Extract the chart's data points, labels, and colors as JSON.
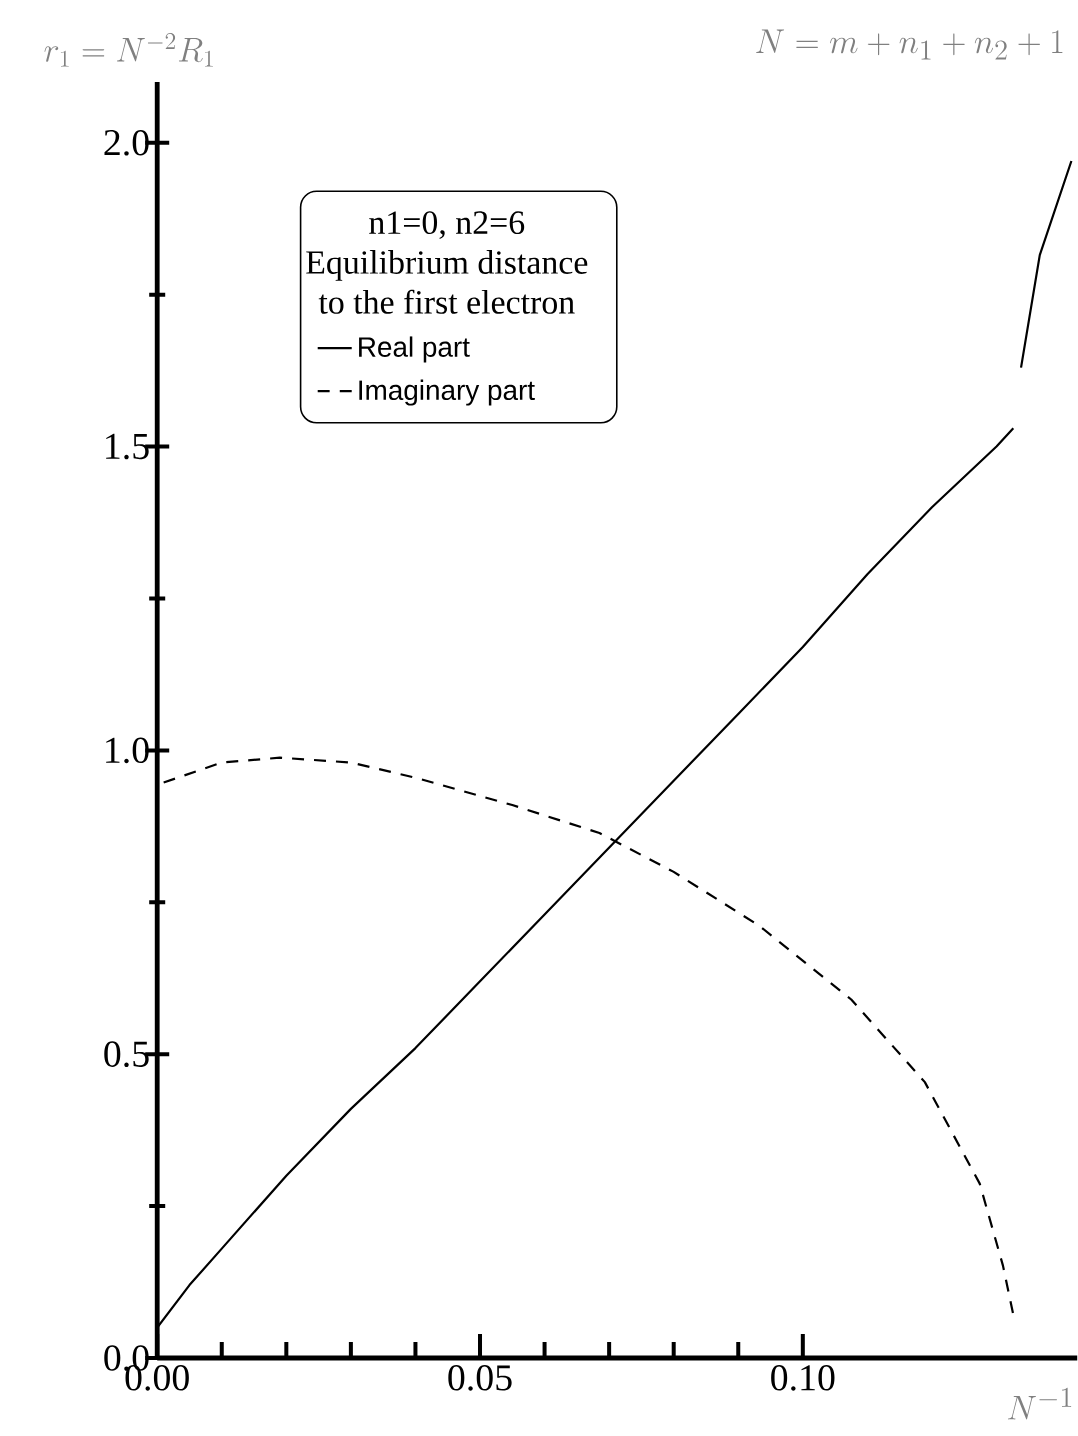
{
  "chart_data": {
    "type": "line",
    "title": "N = m + n_1 + n_2 + 1",
    "xlabel": "N^{-1}",
    "ylabel": "r_1 = N^{-2} R_1",
    "legend_title": "n1=0, n2=6 Equilibrium distance to the first electron",
    "xlim": [
      0,
      0.1425
    ],
    "ylim": [
      0,
      2.1
    ],
    "xticks": [
      {
        "value": 0,
        "label": "0.00"
      },
      {
        "value": 0.05,
        "label": "0.05"
      },
      {
        "value": 0.1,
        "label": "0.10"
      }
    ],
    "yticks": [
      {
        "value": 0,
        "label": "0.0"
      },
      {
        "value": 0.5,
        "label": "0.5"
      },
      {
        "value": 1,
        "label": "1.0"
      },
      {
        "value": 1.5,
        "label": "1.5"
      },
      {
        "value": 2,
        "label": "2.0"
      }
    ],
    "grid": false,
    "legend": "top",
    "marker": "none",
    "series": [
      {
        "name": "Real part",
        "color": "#000000",
        "line_style": "solid",
        "x": [
          0,
          0.005,
          0.01,
          0.02,
          0.03,
          0.04,
          0.05,
          0.06,
          0.07,
          0.08,
          0.09,
          0.1,
          0.11,
          0.12,
          0.13,
          0.1326,
          0.1332,
          0.1338,
          0.1367,
          0.1416
        ],
        "values": [
          0.05,
          0.12,
          0.18,
          0.3,
          0.41,
          0.51,
          0.62,
          0.73,
          0.84,
          0.95,
          1.06,
          1.17,
          1.29,
          1.4,
          1.5,
          1.53,
          null,
          1.63,
          1.815,
          1.97
        ]
      },
      {
        "name": "Imaginary part",
        "color": "#000000",
        "line_style": "dashed",
        "x": [
          0.001,
          0.01,
          0.019,
          0.03,
          0.04,
          0.055,
          0.0685,
          0.08,
          0.0933,
          0.1075,
          0.1189,
          0.1274,
          0.131,
          0.1328
        ],
        "values": [
          0.947,
          0.98,
          0.988,
          0.98,
          0.955,
          0.91,
          0.864,
          0.8,
          0.711,
          0.59,
          0.454,
          0.287,
          0.152,
          0.061
        ]
      }
    ]
  }
}
